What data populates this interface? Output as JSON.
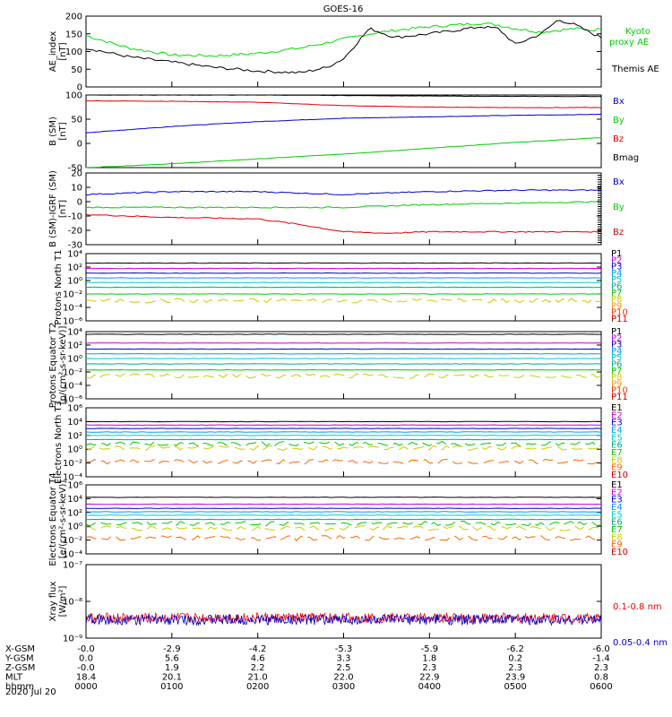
{
  "title": "GOES-16",
  "date_label": "2020 Jul 20",
  "orbit": {
    "rows": [
      {
        "label": "X-GSM",
        "values": [
          "-0.0",
          "-2.9",
          "-4.2",
          "-5.3",
          "-5.9",
          "-6.2",
          "-6.0"
        ]
      },
      {
        "label": "Y-GSM",
        "values": [
          "0.0",
          "5.6",
          "4.6",
          "3.3",
          "1.8",
          "0.2",
          "-1.4"
        ]
      },
      {
        "label": "Z-GSM",
        "values": [
          "-0.0",
          "1.9",
          "2.2",
          "2.5",
          "2.3",
          "2.3",
          "2.3"
        ]
      },
      {
        "label": "MLT",
        "values": [
          "18.4",
          "20.1",
          "21.0",
          "22.0",
          "22.9",
          "23.9",
          "0.8"
        ]
      },
      {
        "label": "hhmm",
        "values": [
          "0000",
          "0100",
          "0200",
          "0300",
          "0400",
          "0500",
          "0600"
        ]
      }
    ]
  },
  "chart_data": [
    {
      "type": "line",
      "ylabel": "AE_index [nT]",
      "ylim": [
        0,
        200
      ],
      "yticks": [
        "0",
        "50",
        "100",
        "150",
        "200"
      ],
      "x_hours": [
        0,
        0.5,
        1,
        1.5,
        2,
        2.5,
        2.8,
        3,
        3.3,
        3.6,
        4,
        4.3,
        4.6,
        4.8,
        5,
        5.3,
        5.5,
        5.7,
        5.9,
        6
      ],
      "series": [
        {
          "name": "Kyoto proxy AE",
          "color": "#00e000",
          "values": [
            145,
            110,
            90,
            88,
            95,
            110,
            125,
            135,
            150,
            160,
            170,
            175,
            180,
            175,
            165,
            155,
            160,
            165,
            160,
            165
          ]
        },
        {
          "name": "Themis AE",
          "color": "#000000",
          "values": [
            110,
            85,
            70,
            55,
            45,
            40,
            55,
            80,
            165,
            140,
            150,
            160,
            170,
            165,
            120,
            150,
            190,
            175,
            150,
            140
          ]
        }
      ]
    },
    {
      "type": "line",
      "ylabel": "B (SM) [nT]",
      "ylim": [
        -50,
        100
      ],
      "yticks": [
        "-50",
        "0",
        "50",
        "100"
      ],
      "x_hours": [
        0,
        1,
        2,
        3,
        4,
        5,
        6
      ],
      "series": [
        {
          "name": "Bx",
          "color": "#0000cc",
          "values": [
            22,
            35,
            45,
            52,
            55,
            58,
            60
          ]
        },
        {
          "name": "By",
          "color": "#00cc00",
          "values": [
            -50,
            -42,
            -32,
            -22,
            -10,
            2,
            12
          ]
        },
        {
          "name": "Bz",
          "color": "#dd0000",
          "values": [
            88,
            87,
            85,
            78,
            75,
            74,
            74
          ]
        },
        {
          "name": "Bmag",
          "color": "#000000",
          "values": [
            100,
            100,
            100,
            99,
            98,
            97,
            97
          ]
        }
      ]
    },
    {
      "type": "line",
      "ylabel": "B (SM)-IGRF (SM) [nT]",
      "ylim": [
        -30,
        20
      ],
      "yticks": [
        "-30",
        "-20",
        "-10",
        "0",
        "10",
        "20"
      ],
      "x_hours": [
        0,
        1,
        2,
        2.5,
        3,
        3.5,
        4,
        5,
        6
      ],
      "series": [
        {
          "name": "Bx",
          "color": "#0000cc",
          "values": [
            5,
            7,
            7,
            6,
            5,
            6,
            7,
            8,
            8
          ]
        },
        {
          "name": "By",
          "color": "#00cc00",
          "values": [
            -4,
            -4,
            -4,
            -4,
            -4,
            -3,
            -2,
            -1,
            0
          ]
        },
        {
          "name": "Bz",
          "color": "#dd0000",
          "values": [
            -9,
            -11,
            -12,
            -16,
            -21,
            -22,
            -21,
            -21,
            -21
          ]
        }
      ]
    },
    {
      "type": "line",
      "scale": "log",
      "ylabel": "Protons North T1",
      "ylim": [
        -6,
        4
      ],
      "yticks": [
        "10⁻⁶",
        "10⁻⁴",
        "10⁻²",
        "10⁰",
        "10²",
        "10⁴"
      ],
      "legend": [
        "P1",
        "P2",
        "P3",
        "P4",
        "P5",
        "P6",
        "P7",
        "P8",
        "P9",
        "P10",
        "P11"
      ],
      "channel_log_levels": [
        2.6,
        1.8,
        1.1,
        0.4,
        -0.3,
        -1.0,
        -2.0,
        -3.0,
        null,
        null,
        null
      ]
    },
    {
      "type": "line",
      "scale": "log",
      "ylabel": "Protons Equator T2 [p/(cm²-s-sr-keV)]",
      "ylim": [
        -6,
        4
      ],
      "yticks": [
        "10⁻⁶",
        "10⁻⁴",
        "10⁻²",
        "10⁰",
        "10²",
        "10⁴"
      ],
      "legend": [
        "P1",
        "P2",
        "P3",
        "P4",
        "P5",
        "P6",
        "P7",
        "P8",
        "P9",
        "P10",
        "P11"
      ],
      "channel_log_levels": [
        3.6,
        2.3,
        1.4,
        0.7,
        0.0,
        -0.8,
        -1.7,
        -2.6,
        null,
        null,
        null
      ]
    },
    {
      "type": "line",
      "scale": "log",
      "ylabel": "Electrons North T3",
      "ylim": [
        -4,
        6
      ],
      "yticks": [
        "10⁻⁴",
        "10⁻²",
        "10⁰",
        "10²",
        "10⁴",
        "10⁶"
      ],
      "legend": [
        "E1",
        "E2",
        "E3",
        "E4",
        "E5",
        "E6",
        "E7",
        "E8",
        "E9",
        "E10"
      ],
      "channel_log_levels": [
        4.0,
        3.5,
        3.0,
        2.5,
        2.0,
        1.4,
        0.8,
        0.2,
        -1.8,
        null
      ]
    },
    {
      "type": "line",
      "scale": "log",
      "ylabel": "Electrons Equator T4 [e/(cm²-s-sr-keV)]",
      "ylim": [
        -4,
        6
      ],
      "yticks": [
        "10⁻⁴",
        "10⁻²",
        "10⁰",
        "10²",
        "10⁴",
        "10⁶"
      ],
      "legend": [
        "E1",
        "E2",
        "E3",
        "E4",
        "E5",
        "E6",
        "E7",
        "E8",
        "E9",
        "E10"
      ],
      "channel_log_levels": [
        4.2,
        3.2,
        2.6,
        2.1,
        1.6,
        1.0,
        0.4,
        -0.3,
        -1.7,
        null
      ]
    },
    {
      "type": "line",
      "scale": "log",
      "ylabel": "Xray flux [W/m²]",
      "ylim": [
        -9,
        -7
      ],
      "yticks": [
        "10⁻⁹",
        "10⁻⁸",
        "10⁻⁷"
      ],
      "series": [
        {
          "name": "0.1-0.8 nm",
          "color": "#ee0000",
          "log_level": -8.45
        },
        {
          "name": "0.05-0.4 nm",
          "color": "#0000cc",
          "log_level": -8.5
        }
      ]
    }
  ],
  "colors": {
    "P": [
      "#000000",
      "#cc00cc",
      "#0000cc",
      "#0099ff",
      "#00cccc",
      "#00aa88",
      "#00cc00",
      "#cccc00",
      "#ff9900",
      "#ff3300",
      "#cc0000"
    ],
    "E": [
      "#000000",
      "#cc00cc",
      "#0000cc",
      "#0099ff",
      "#00cccc",
      "#00aa88",
      "#00cc00",
      "#cccc00",
      "#ff6600",
      "#cc0000"
    ]
  }
}
